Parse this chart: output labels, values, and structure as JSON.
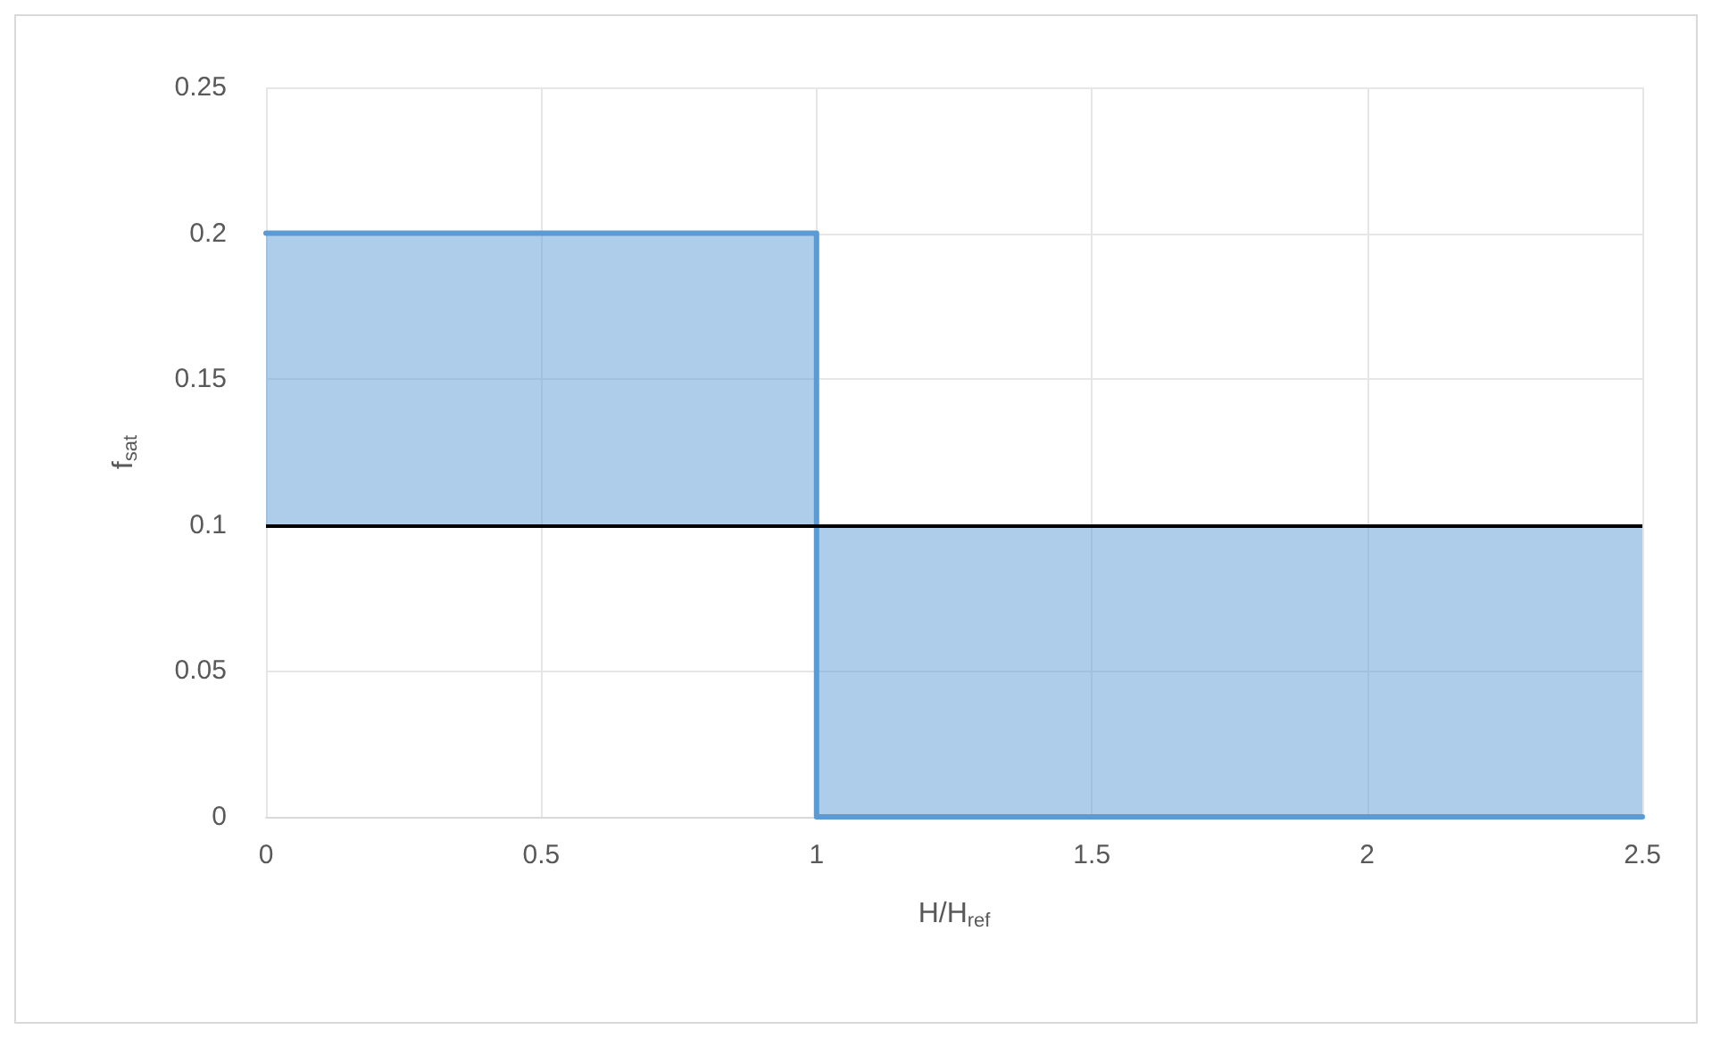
{
  "chart_data": {
    "type": "line",
    "xlabel": "H/H$_{ref}$",
    "ylabel": "f$_{sat}$",
    "series": [
      {
        "color": "#5b9bd5",
        "x": [
          0,
          1,
          1,
          2.5
        ],
        "values": [
          0.2,
          0.2,
          0,
          0
        ],
        "lower": [
          0.1,
          0.1,
          0,
          0
        ],
        "upper": [
          0.2,
          0.2,
          0.1,
          0.1
        ]
      }
    ],
    "ref_lines": [
      {
        "axis": "y",
        "value": 0.1,
        "color": "#000000"
      }
    ],
    "xlim": [
      0,
      2.5
    ],
    "xticks": [
      0,
      0.5,
      1,
      1.5,
      2,
      2.5
    ],
    "ylim": [
      0,
      0.25
    ],
    "yticks": [
      0,
      0.05,
      0.1,
      0.15,
      0.2,
      0.25
    ],
    "grid": true,
    "marker": "none",
    "line_style": "solid"
  }
}
